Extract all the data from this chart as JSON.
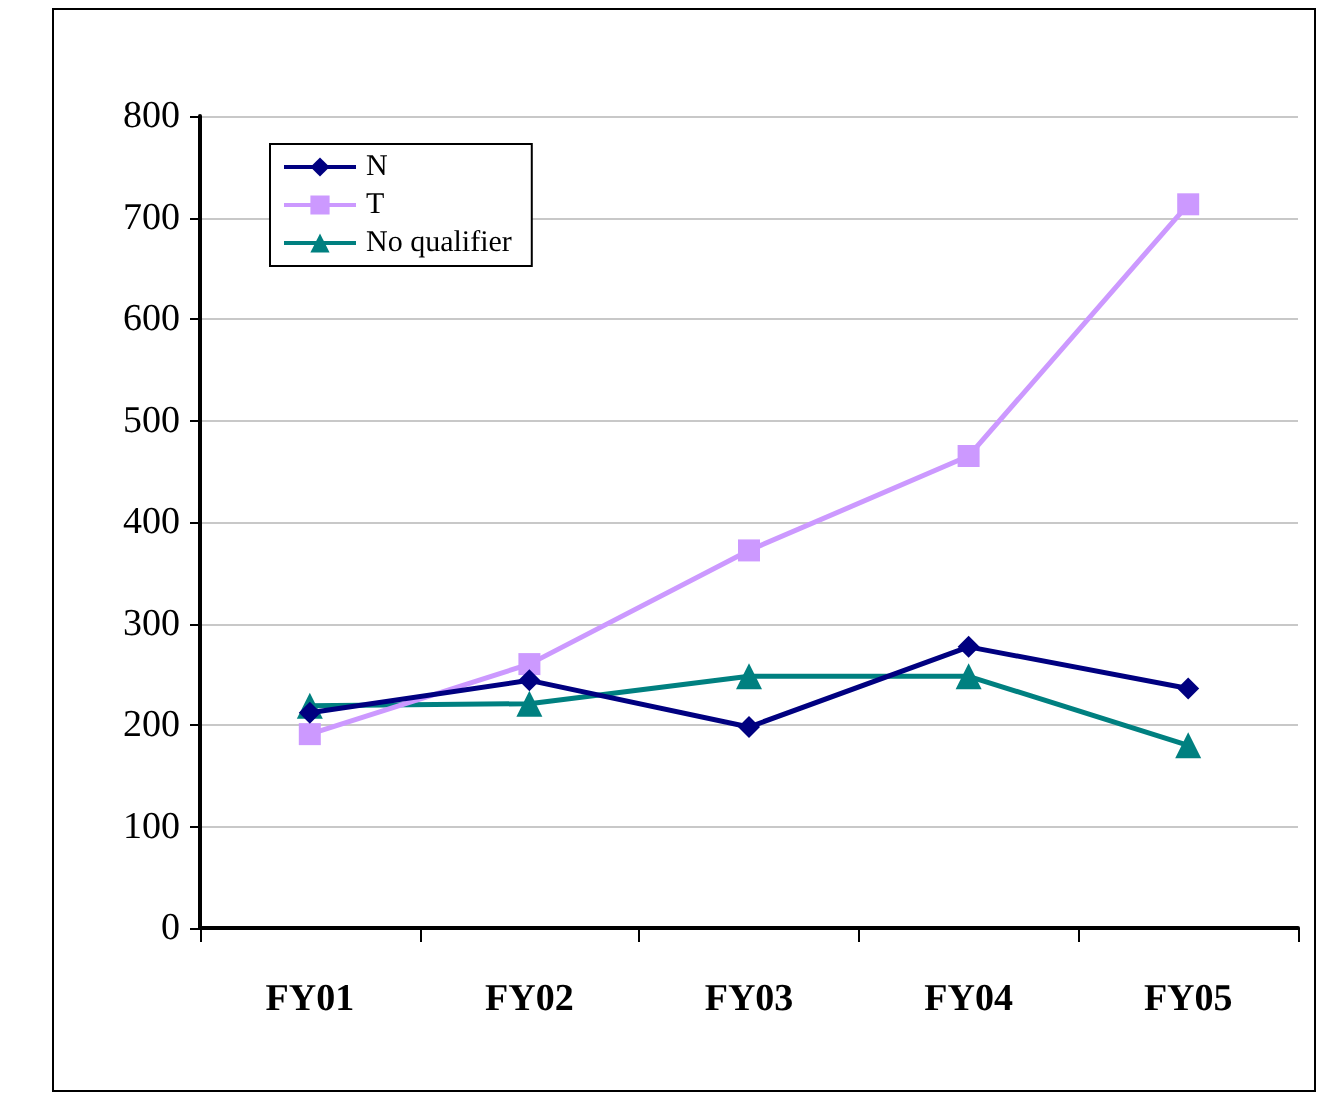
{
  "chart_data": {
    "type": "line",
    "categories": [
      "FY01",
      "FY02",
      "FY03",
      "FY04",
      "FY05"
    ],
    "series": [
      {
        "name": "N",
        "color": "#000080",
        "marker": "diamond",
        "values": [
          212,
          244,
          198,
          277,
          236
        ]
      },
      {
        "name": "T",
        "color": "#cc99ff",
        "marker": "square",
        "values": [
          191,
          260,
          372,
          465,
          713
        ]
      },
      {
        "name": "No qualifier",
        "color": "#008080",
        "marker": "triangle",
        "values": [
          219,
          221,
          248,
          248,
          180
        ]
      }
    ],
    "ylim": [
      0,
      800
    ],
    "yticks": [
      0,
      100,
      200,
      300,
      400,
      500,
      600,
      700,
      800
    ],
    "grid": "y",
    "legend": "top left",
    "line_style": "solid"
  }
}
